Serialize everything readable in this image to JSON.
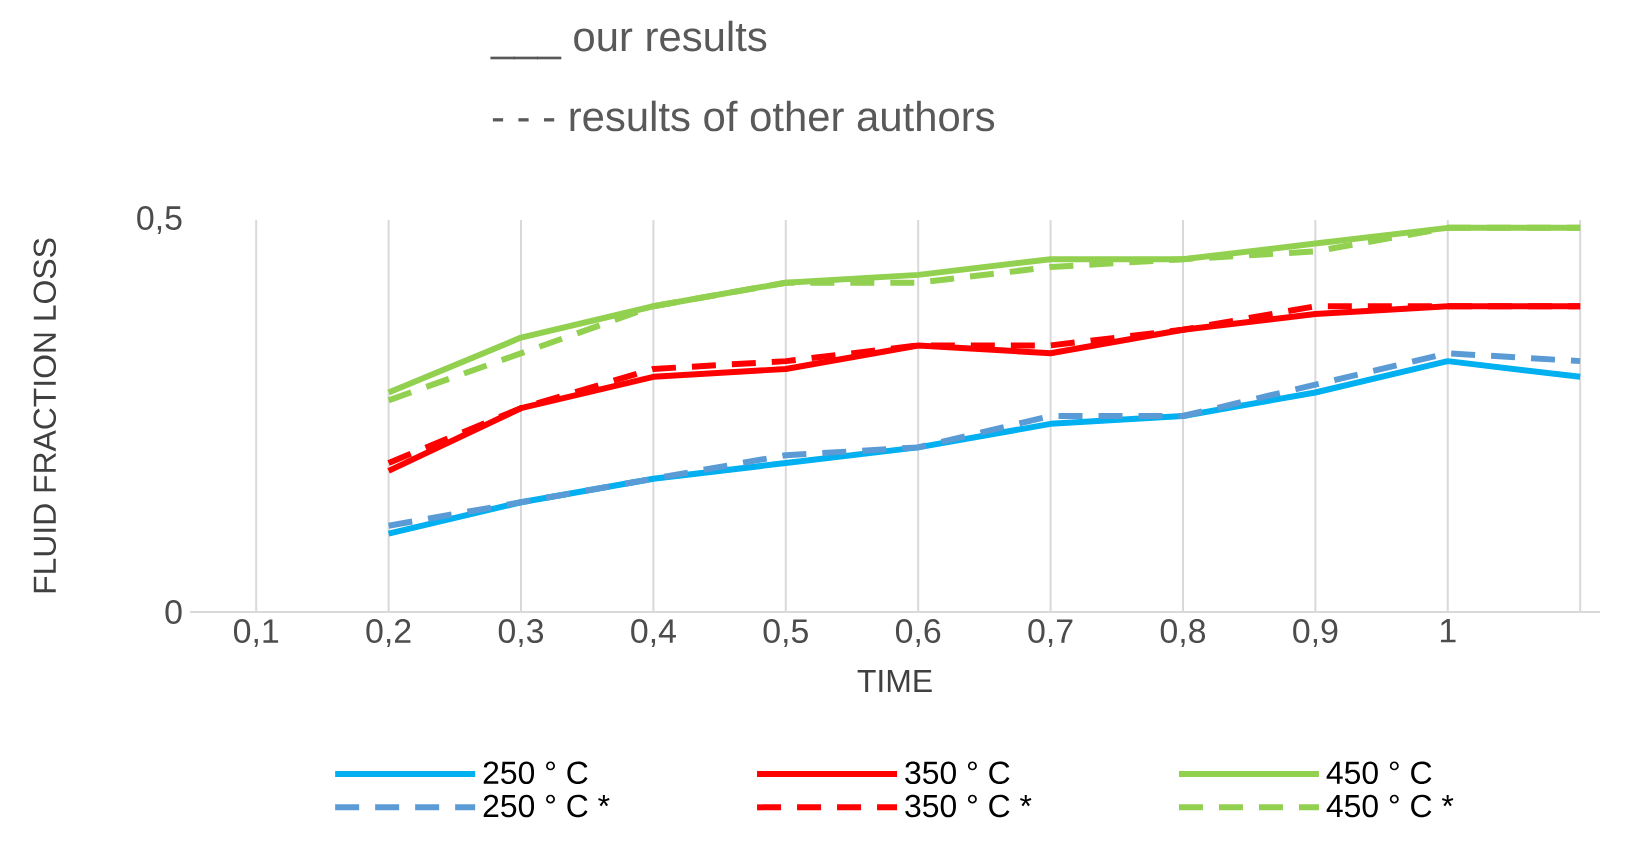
{
  "chart_data": {
    "type": "line",
    "xlabel": "TIME",
    "ylabel": "FLUID FRACTION LOSS",
    "annotations": [
      "___   our results",
      "- - -   results of other authors"
    ],
    "categories": [
      "0,1",
      "0,2",
      "0,3",
      "0,4",
      "0,5",
      "0,6",
      "0,7",
      "0,8",
      "0,9",
      "1",
      null
    ],
    "ylim": [
      0,
      0.5
    ],
    "yticks": [
      0,
      {
        "value": 0.5,
        "label": "0,5"
      }
    ],
    "grid": "x",
    "legend": "bottom",
    "series": [
      {
        "name": "250 ° C",
        "color": "#00b0f0",
        "line_style": "solid",
        "values": [
          null,
          0.1,
          0.14,
          0.17,
          0.19,
          0.21,
          0.24,
          0.25,
          0.28,
          0.32,
          0.3
        ]
      },
      {
        "name": "350 ° C",
        "color": "#ff0000",
        "line_style": "solid",
        "values": [
          null,
          0.18,
          0.26,
          0.3,
          0.31,
          0.34,
          0.33,
          0.36,
          0.38,
          0.39,
          0.39
        ]
      },
      {
        "name": "450 ° C",
        "color": "#92d050",
        "line_style": "solid",
        "values": [
          null,
          0.28,
          0.35,
          0.39,
          0.42,
          0.43,
          0.45,
          0.45,
          0.47,
          0.49,
          0.49
        ]
      },
      {
        "name": "250 ° C *",
        "color": "#5b9bd5",
        "line_style": "dashed",
        "values": [
          null,
          0.11,
          0.14,
          0.17,
          0.2,
          0.21,
          0.25,
          0.25,
          0.29,
          0.33,
          0.32
        ]
      },
      {
        "name": "350 ° C *",
        "color": "#ff0000",
        "line_style": "dashed",
        "values": [
          null,
          0.19,
          0.26,
          0.31,
          0.32,
          0.34,
          0.34,
          0.36,
          0.39,
          0.39,
          0.39
        ]
      },
      {
        "name": "450 ° C *",
        "color": "#92d050",
        "line_style": "dashed",
        "values": [
          null,
          0.27,
          0.33,
          0.39,
          0.42,
          0.42,
          0.44,
          0.45,
          0.46,
          0.49,
          0.49
        ]
      }
    ]
  }
}
